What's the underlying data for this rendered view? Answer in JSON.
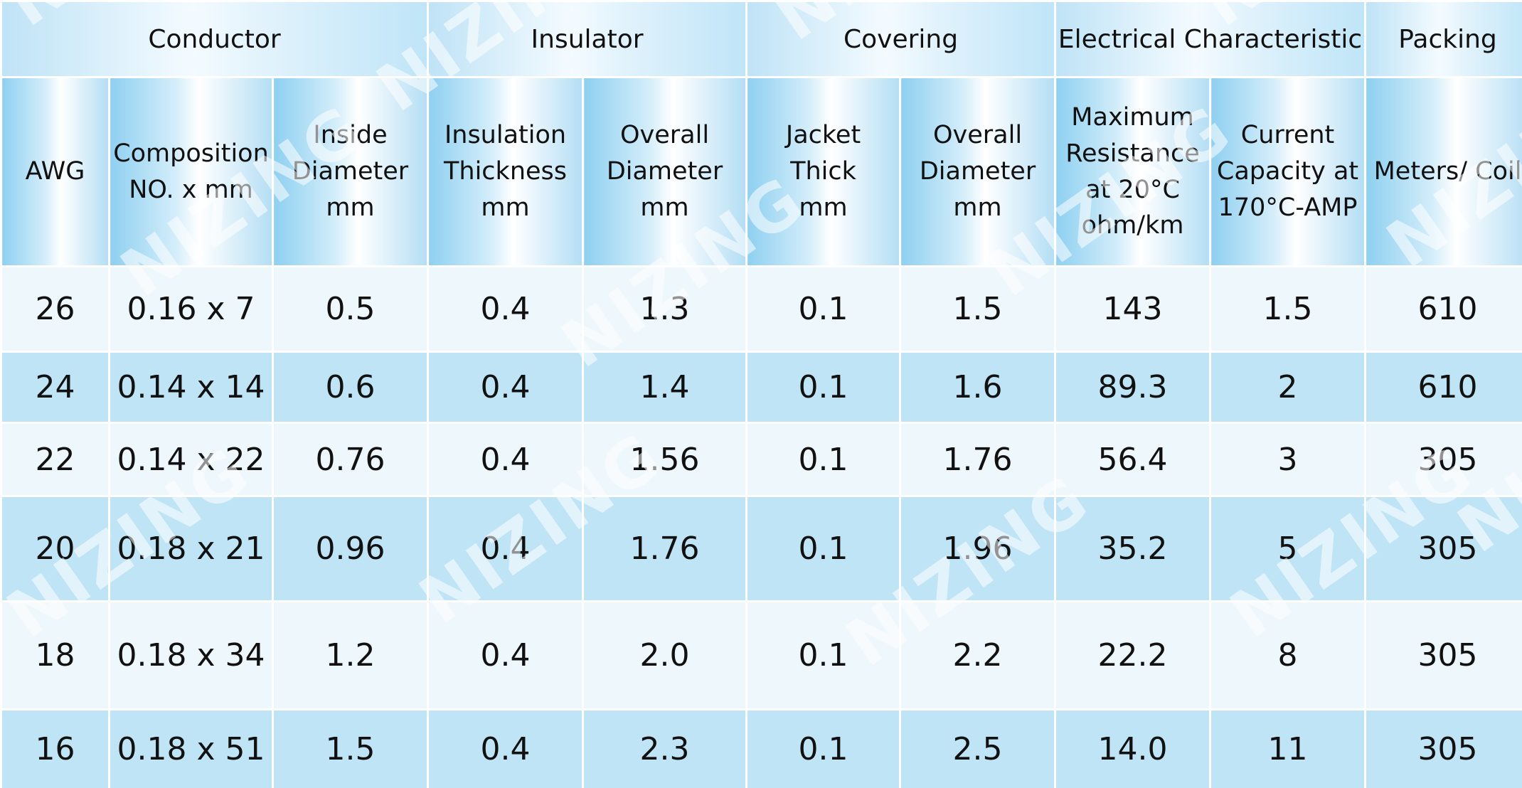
{
  "table": {
    "groups": [
      {
        "label": "Conductor",
        "span": 3
      },
      {
        "label": "Insulator",
        "span": 2
      },
      {
        "label": "Covering",
        "span": 2
      },
      {
        "label": "Electrical Characteristic",
        "span": 2
      },
      {
        "label": "Packing",
        "span": 1
      }
    ],
    "columns": [
      [
        "AWG"
      ],
      [
        "Composition",
        "NO. x mm"
      ],
      [
        "Inside",
        "Diameter",
        "mm"
      ],
      [
        "Insulation",
        "Thickness",
        "mm"
      ],
      [
        "Overall",
        "Diameter",
        "mm"
      ],
      [
        "Jacket",
        "Thick",
        "mm"
      ],
      [
        "Overall",
        "Diameter",
        "mm"
      ],
      [
        "Maximum",
        "Resistance",
        "at 20°C",
        "ohm/km"
      ],
      [
        "Current",
        "Capacity at",
        "170°C-AMP"
      ],
      [
        "Meters/ Coil"
      ]
    ],
    "rows": [
      [
        "26",
        "0.16 x 7",
        "0.5",
        "0.4",
        "1.3",
        "0.1",
        "1.5",
        "143",
        "1.5",
        "610"
      ],
      [
        "24",
        "0.14 x 14",
        "0.6",
        "0.4",
        "1.4",
        "0.1",
        "1.6",
        "89.3",
        "2",
        "610"
      ],
      [
        "22",
        "0.14 x 22",
        "0.76",
        "0.4",
        "1.56",
        "0.1",
        "1.76",
        "56.4",
        "3",
        "305"
      ],
      [
        "20",
        "0.18 x 21",
        "0.96",
        "0.4",
        "1.76",
        "0.1",
        "1.96",
        "35.2",
        "5",
        "305"
      ],
      [
        "18",
        "0.18 x 34",
        "1.2",
        "0.4",
        "2.0",
        "0.1",
        "2.2",
        "22.2",
        "8",
        "305"
      ],
      [
        "16",
        "0.18 x 51",
        "1.5",
        "0.4",
        "2.3",
        "0.1",
        "2.5",
        "14.0",
        "11",
        "305"
      ]
    ]
  },
  "watermark": {
    "text": "NIZING"
  }
}
